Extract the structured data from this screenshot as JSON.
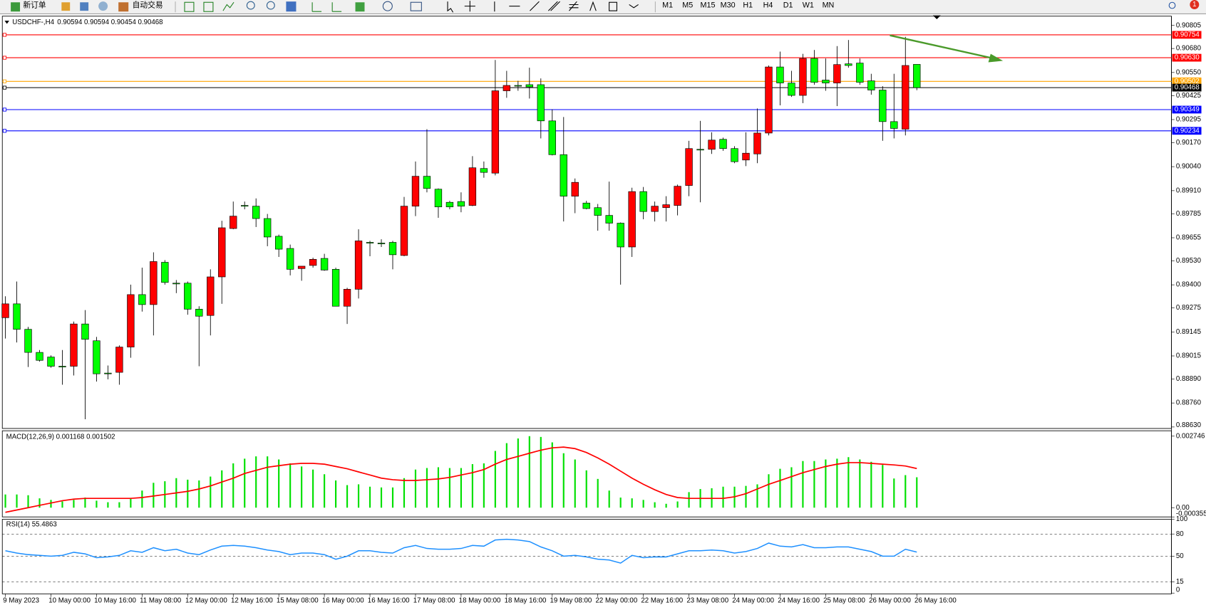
{
  "toolbar": {
    "new_order": "新订单",
    "auto_trading": "自动交易",
    "timeframes": [
      "M1",
      "M5",
      "M15",
      "M30",
      "H1",
      "H4",
      "D1",
      "W1",
      "MN"
    ],
    "badge": "1"
  },
  "chart_data": [
    {
      "type": "candlestick",
      "title": "USDCHF-,H4",
      "subtitle": "0.90594 0.90594 0.90454 0.90468",
      "categories": [
        "9 May 2023",
        null,
        null,
        null,
        "10 May 00:00",
        null,
        null,
        null,
        "10 May 16:00",
        null,
        null,
        null,
        "11 May 08:00",
        null,
        null,
        null,
        "12 May 00:00",
        null,
        null,
        null,
        "12 May 16:00",
        null,
        null,
        null,
        "15 May 08:00",
        null,
        null,
        null,
        "16 May 00:00",
        null,
        null,
        null,
        "16 May 16:00",
        null,
        null,
        null,
        "17 May 08:00",
        null,
        null,
        null,
        "18 May 00:00",
        null,
        null,
        null,
        "18 May 16:00",
        null,
        null,
        null,
        "19 May 08:00",
        null,
        null,
        null,
        "22 May 00:00",
        null,
        null,
        null,
        "22 May 16:00",
        null,
        null,
        null,
        "23 May 08:00",
        null,
        null,
        null,
        "24 May 00:00",
        null,
        null,
        null,
        "24 May 16:00",
        null,
        null,
        null,
        "25 May 08:00",
        null,
        null,
        null,
        "26 May 00:00",
        null,
        null,
        null,
        "26 May 16:00"
      ],
      "open": [
        0.89222,
        0.89297,
        0.89159,
        0.89034,
        0.89009,
        0.88959,
        0.88959,
        0.89188,
        0.89097,
        0.88922,
        0.88926,
        0.89063,
        0.89347,
        0.89293,
        0.89522,
        0.89409,
        0.89409,
        0.89268,
        0.89234,
        0.89443,
        0.89705,
        0.8983,
        0.89826,
        0.89759,
        0.89663,
        0.89597,
        0.89488,
        0.89505,
        0.89543,
        0.89484,
        0.89284,
        0.89376,
        0.8963,
        0.89626,
        0.8963,
        0.89559,
        0.89826,
        0.89988,
        0.89918,
        0.89847,
        0.89851,
        0.8983,
        0.9003,
        0.90005,
        0.90451,
        0.9048,
        0.90484,
        0.90484,
        0.90288,
        0.90105,
        0.8988,
        0.89843,
        0.89818,
        0.89776,
        0.89734,
        0.89605,
        0.89905,
        0.89797,
        0.89818,
        0.8983,
        0.89938,
        0.90134,
        0.90134,
        0.90188,
        0.90138,
        0.90076,
        0.90109,
        0.90222,
        0.9058,
        0.90493,
        0.90426,
        0.90626,
        0.90509,
        0.90493,
        0.90597,
        0.90601,
        0.90505,
        0.90455,
        0.90284,
        0.90243,
        0.90594
      ],
      "high": [
        0.89338,
        0.89418,
        0.89172,
        0.89047,
        0.89018,
        0.89047,
        0.89201,
        0.89263,
        0.89118,
        0.88963,
        0.89072,
        0.89401,
        0.89493,
        0.89576,
        0.89534,
        0.89426,
        0.89418,
        0.89284,
        0.89484,
        0.89747,
        0.89851,
        0.89851,
        0.89868,
        0.89784,
        0.89672,
        0.89618,
        0.89501,
        0.89547,
        0.89568,
        0.89493,
        0.89384,
        0.89701,
        0.89638,
        0.89647,
        0.89638,
        0.89876,
        0.90068,
        0.90243,
        0.89922,
        0.89855,
        0.89901,
        0.90097,
        0.90068,
        0.90618,
        0.90559,
        0.90505,
        0.90576,
        0.90518,
        0.90351,
        0.90309,
        0.89976,
        0.89855,
        0.89838,
        0.89959,
        0.89738,
        0.89926,
        0.8993,
        0.89851,
        0.8988,
        0.89943,
        0.9018,
        0.90288,
        0.90226,
        0.90197,
        0.90151,
        0.90226,
        0.90355,
        0.90588,
        0.90663,
        0.90559,
        0.90651,
        0.90672,
        0.90626,
        0.90693,
        0.90726,
        0.90626,
        0.90543,
        0.90476,
        0.90543,
        0.90743,
        0.90594
      ],
      "low": [
        0.89109,
        0.89088,
        0.88955,
        0.88984,
        0.88951,
        0.88859,
        0.88909,
        0.88672,
        0.88876,
        0.88888,
        0.88859,
        0.89005,
        0.89255,
        0.89126,
        0.89401,
        0.89355,
        0.89238,
        0.88959,
        0.89126,
        0.89297,
        0.89701,
        0.89809,
        0.89713,
        0.89609,
        0.89551,
        0.89451,
        0.89422,
        0.89493,
        0.89476,
        0.89284,
        0.89188,
        0.89326,
        0.89555,
        0.89605,
        0.89484,
        0.89555,
        0.89772,
        0.89901,
        0.89763,
        0.89809,
        0.89793,
        0.89826,
        0.8998,
        0.89993,
        0.90413,
        0.90451,
        0.90409,
        0.90193,
        0.90101,
        0.89743,
        0.89788,
        0.89809,
        0.89693,
        0.89693,
        0.89401,
        0.89551,
        0.89755,
        0.89743,
        0.89743,
        0.89776,
        0.8988,
        0.89847,
        0.90109,
        0.90126,
        0.90059,
        0.90043,
        0.90059,
        0.90209,
        0.90372,
        0.90418,
        0.90384,
        0.90484,
        0.90451,
        0.90368,
        0.90576,
        0.90484,
        0.9043,
        0.9018,
        0.90193,
        0.90209,
        0.90454
      ],
      "close": [
        0.89297,
        0.89159,
        0.89034,
        0.88991,
        0.88959,
        0.88955,
        0.89188,
        0.89105,
        0.88918,
        0.88918,
        0.89063,
        0.89347,
        0.89293,
        0.89526,
        0.89413,
        0.89405,
        0.89268,
        0.8923,
        0.89443,
        0.89709,
        0.89772,
        0.89826,
        0.89759,
        0.89659,
        0.89593,
        0.89484,
        0.89501,
        0.89538,
        0.8948,
        0.89284,
        0.89376,
        0.89638,
        0.89626,
        0.89622,
        0.89563,
        0.89826,
        0.89988,
        0.89922,
        0.89822,
        0.89822,
        0.89826,
        0.90034,
        0.90009,
        0.90451,
        0.9048,
        0.90476,
        0.90472,
        0.90288,
        0.90105,
        0.8988,
        0.89955,
        0.89813,
        0.89776,
        0.89734,
        0.89605,
        0.89905,
        0.89797,
        0.89826,
        0.89834,
        0.89934,
        0.90138,
        0.9013,
        0.90184,
        0.90138,
        0.90067,
        0.90113,
        0.90222,
        0.9058,
        0.90493,
        0.90426,
        0.90626,
        0.90497,
        0.90493,
        0.90593,
        0.90588,
        0.90497,
        0.90455,
        0.90284,
        0.90247,
        0.90588,
        0.90468
      ],
      "up_color": "#ff0000",
      "down_color": "#00ff00",
      "ylim": [
        0.88622,
        0.90851
      ],
      "yticks": [
        0.90805,
        {
          "value": 0.9068,
          "label": "0.90680"
        },
        {
          "value": 0.9055,
          "label": "0.90550"
        },
        0.90425,
        0.90295,
        {
          "value": 0.9017,
          "label": "0.90170"
        },
        {
          "value": 0.9004,
          "label": "0.90040"
        },
        {
          "value": 0.8991,
          "label": "0.89910"
        },
        0.89785,
        0.89655,
        {
          "value": 0.8953,
          "label": "0.89530"
        },
        {
          "value": 0.894,
          "label": "0.89400"
        },
        0.89275,
        0.89145,
        0.89015,
        {
          "value": 0.8889,
          "label": "0.88890"
        },
        {
          "value": 0.8876,
          "label": "0.88760"
        },
        {
          "value": 0.8863,
          "label": "0.88630"
        }
      ],
      "levels": [
        {
          "value": 0.90754,
          "color": "#ff0000"
        },
        {
          "value": 0.9063,
          "label": "0.90630",
          "color": "#ff0000"
        },
        {
          "value": 0.90502,
          "color": "#ffa500"
        },
        {
          "value": 0.90468,
          "color": "#000000"
        },
        {
          "value": 0.90349,
          "color": "#0000ff"
        },
        {
          "value": 0.90234,
          "color": "#0000ff"
        }
      ],
      "grid": false
    },
    {
      "type": "macd",
      "title": "MACD(12,26,9) 0.001168 0.001502",
      "series": [
        {
          "type": "bar",
          "color": "#00e000",
          "values": [
            0.000507,
            0.000507,
            0.000478,
            0.000358,
            0.000299,
            0.000239,
            0.000299,
            0.000388,
            0.000269,
            0.000209,
            0.000209,
            0.000358,
            0.000657,
            0.000955,
            0.001015,
            0.001134,
            0.001075,
            0.001045,
            0.001194,
            0.001433,
            0.001701,
            0.001881,
            0.00197,
            0.00197,
            0.001851,
            0.001701,
            0.001582,
            0.001463,
            0.001284,
            0.001045,
            0.000866,
            0.000896,
            0.000806,
            0.000776,
            0.000776,
            0.001134,
            0.001463,
            0.001522,
            0.001552,
            0.001522,
            0.001522,
            0.001672,
            0.001701,
            0.002179,
            0.002478,
            0.002657,
            0.002746,
            0.002716,
            0.002507,
            0.00209,
            0.001851,
            0.001433,
            0.001104,
            0.000657,
            0.000388,
            0.000358,
            0.000299,
            0.000209,
            0.000149,
            0.000239,
            0.000597,
            0.000716,
            0.000746,
            0.000806,
            0.000806,
            0.000836,
            0.000896,
            0.001284,
            0.001493,
            0.001552,
            0.001791,
            0.001791,
            0.001851,
            0.001881,
            0.00194,
            0.001851,
            0.001761,
            0.001642,
            0.00112,
            0.00125,
            0.001168
          ]
        },
        {
          "type": "line",
          "color": "#ff0000",
          "values": [
            -0.000179,
            -9e-05,
            0,
            9e-05,
            0.000179,
            0.000269,
            0.000328,
            0.000358,
            0.000358,
            0.000358,
            0.000358,
            0.000358,
            0.000388,
            0.000448,
            0.000507,
            0.000567,
            0.000627,
            0.000716,
            0.000836,
            0.000985,
            0.001134,
            0.001313,
            0.001433,
            0.001552,
            0.001612,
            0.001672,
            0.001701,
            0.001701,
            0.001672,
            0.001582,
            0.001493,
            0.001373,
            0.001254,
            0.001134,
            0.001075,
            0.001045,
            0.001045,
            0.001075,
            0.001104,
            0.001164,
            0.001254,
            0.001343,
            0.001463,
            0.001672,
            0.001851,
            0.00197,
            0.00209,
            0.002209,
            0.002298,
            0.002328,
            0.002269,
            0.002119,
            0.00191,
            0.001672,
            0.001403,
            0.001134,
            0.000896,
            0.000687,
            0.000507,
            0.000388,
            0.000358,
            0.000358,
            0.000358,
            0.000358,
            0.000418,
            0.000537,
            0.000716,
            0.000896,
            0.001045,
            0.001194,
            0.001343,
            0.001463,
            0.001582,
            0.001672,
            0.001731,
            0.001731,
            0.001701,
            0.001672,
            0.001642,
            0.0016,
            0.001502
          ]
        }
      ],
      "ylim": [
        -0.000355,
        0.002746
      ],
      "yticks": [
        0.002746,
        {
          "value": 0,
          "label": "0.00"
        },
        -0.000355
      ],
      "grid": false
    },
    {
      "type": "line",
      "title": "RSI(14) 55.4863",
      "color": "#1e90ff",
      "values": [
        57.3,
        54.2,
        52.1,
        51.0,
        50.0,
        51.0,
        55.2,
        53.1,
        47.9,
        49.0,
        51.0,
        57.3,
        55.2,
        61.5,
        57.3,
        59.4,
        54.2,
        52.1,
        58.3,
        63.5,
        64.6,
        63.5,
        61.5,
        58.3,
        56.3,
        52.1,
        54.2,
        54.2,
        52.1,
        45.8,
        50.0,
        57.3,
        57.3,
        55.2,
        54.2,
        61.5,
        64.6,
        60.4,
        59.4,
        59.4,
        60.4,
        64.6,
        63.5,
        71.9,
        72.9,
        71.9,
        69.8,
        62.5,
        57.3,
        50.0,
        51.0,
        49.0,
        45.8,
        44.8,
        40.6,
        51.0,
        47.9,
        49.0,
        49.0,
        53.1,
        57.3,
        57.3,
        58.3,
        57.3,
        54.2,
        56.3,
        60.4,
        67.7,
        63.5,
        62.5,
        65.6,
        61.5,
        61.5,
        62.5,
        62.5,
        59.4,
        56.3,
        50.0,
        50.0,
        59.4,
        55.4863
      ],
      "ylim": [
        0,
        100
      ],
      "yticks": [
        100,
        80,
        50,
        15,
        0
      ],
      "grid": true
    }
  ]
}
